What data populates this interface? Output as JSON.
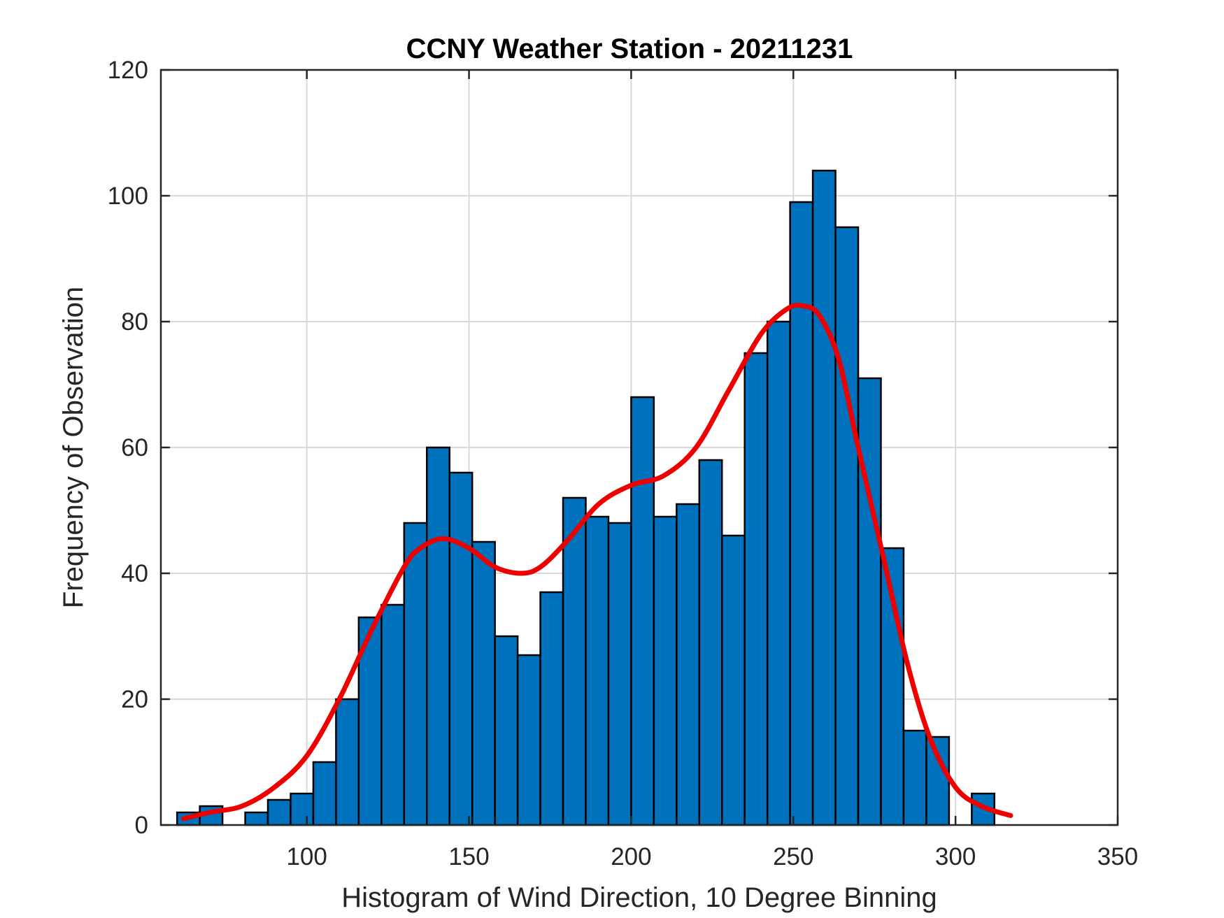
{
  "chart_data": {
    "type": "bar",
    "subtype": "histogram",
    "title": "CCNY Weather Station - 20211231",
    "xlabel": "Histogram of Wind Direction, 10 Degree Binning",
    "ylabel": "Frequency of Observation",
    "xlim": [
      55,
      350
    ],
    "ylim": [
      0,
      120
    ],
    "xticks": [
      100,
      150,
      200,
      250,
      300,
      350
    ],
    "yticks": [
      0,
      20,
      40,
      60,
      80,
      100,
      120
    ],
    "xtick_labels": [
      "100",
      "150",
      "200",
      "250",
      "300",
      "350"
    ],
    "ytick_labels": [
      "0",
      "20",
      "40",
      "60",
      "80",
      "100",
      "120"
    ],
    "grid": true,
    "bin_width": 7,
    "bins": [
      {
        "center": 63.5,
        "count": 2
      },
      {
        "center": 70.5,
        "count": 3
      },
      {
        "center": 84.5,
        "count": 2
      },
      {
        "center": 91.5,
        "count": 4
      },
      {
        "center": 98.5,
        "count": 5
      },
      {
        "center": 105.5,
        "count": 10
      },
      {
        "center": 112.5,
        "count": 20
      },
      {
        "center": 119.5,
        "count": 33
      },
      {
        "center": 126.5,
        "count": 35
      },
      {
        "center": 133.5,
        "count": 48
      },
      {
        "center": 140.5,
        "count": 60
      },
      {
        "center": 147.5,
        "count": 56
      },
      {
        "center": 154.5,
        "count": 45
      },
      {
        "center": 161.5,
        "count": 30
      },
      {
        "center": 168.5,
        "count": 27
      },
      {
        "center": 175.5,
        "count": 37
      },
      {
        "center": 182.5,
        "count": 52
      },
      {
        "center": 189.5,
        "count": 49
      },
      {
        "center": 196.5,
        "count": 48
      },
      {
        "center": 203.5,
        "count": 68
      },
      {
        "center": 210.5,
        "count": 49
      },
      {
        "center": 217.5,
        "count": 51
      },
      {
        "center": 224.5,
        "count": 58
      },
      {
        "center": 231.5,
        "count": 46
      },
      {
        "center": 238.5,
        "count": 75
      },
      {
        "center": 245.5,
        "count": 80
      },
      {
        "center": 252.5,
        "count": 99
      },
      {
        "center": 259.5,
        "count": 104
      },
      {
        "center": 266.5,
        "count": 95
      },
      {
        "center": 273.5,
        "count": 71
      },
      {
        "center": 280.5,
        "count": 44
      },
      {
        "center": 287.5,
        "count": 15
      },
      {
        "center": 294.5,
        "count": 14
      },
      {
        "center": 308.5,
        "count": 5
      }
    ],
    "fit_curve": {
      "name": "density fit",
      "x": [
        62,
        70,
        80,
        90,
        100,
        110,
        120,
        130,
        135,
        142,
        150,
        158,
        166,
        172,
        180,
        190,
        200,
        210,
        220,
        230,
        240,
        248,
        253,
        258,
        264,
        270,
        278,
        285,
        292,
        300,
        308,
        317
      ],
      "y": [
        1,
        2,
        3,
        6,
        11,
        20,
        31,
        41,
        44,
        45.5,
        44,
        41,
        40,
        41,
        45,
        51,
        54,
        55.5,
        60,
        69,
        78,
        82,
        82.5,
        81,
        74,
        60,
        42,
        26,
        14,
        6,
        3,
        1.5
      ]
    },
    "colors": {
      "bar_fill": "#0072BD",
      "bar_edge": "#000000",
      "curve": "#EE0000"
    }
  }
}
